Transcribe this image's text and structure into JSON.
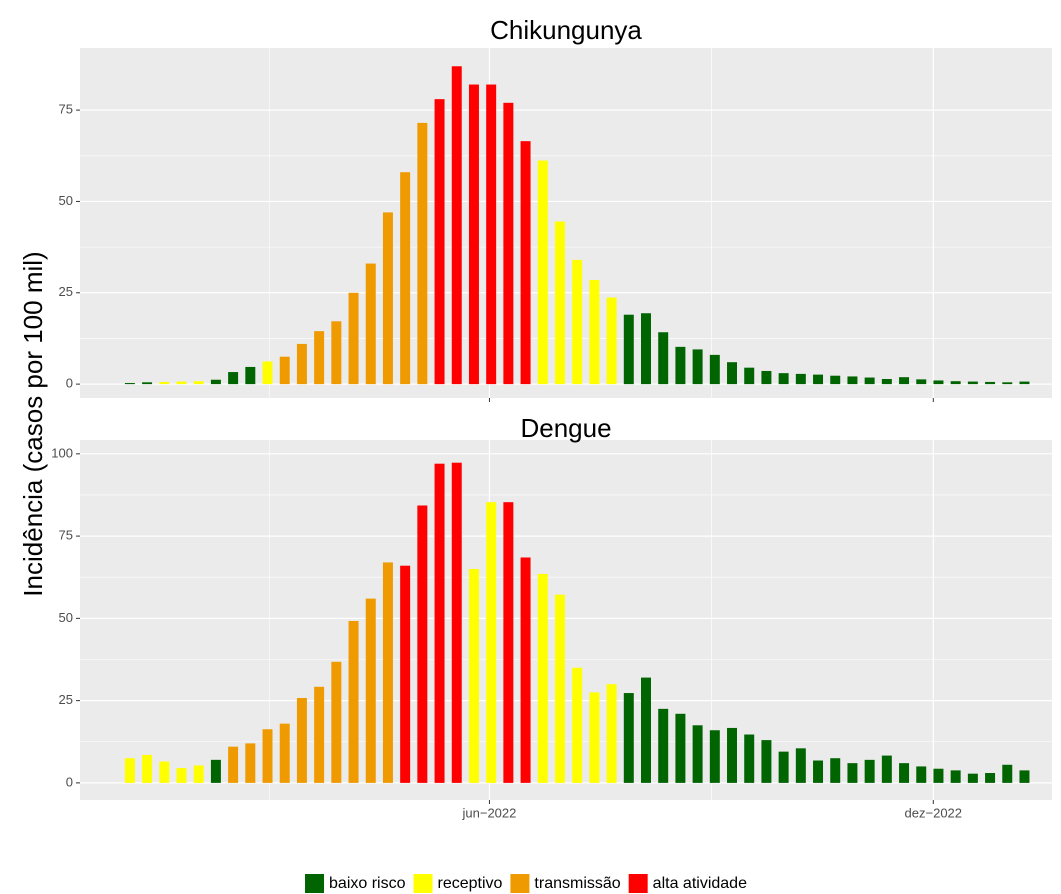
{
  "chart_data": {
    "type": "bar",
    "ylabel": "Incidência (casos por 100 mil)",
    "x": [
      1,
      2,
      3,
      4,
      5,
      6,
      7,
      8,
      9,
      10,
      11,
      12,
      13,
      14,
      15,
      16,
      17,
      18,
      19,
      20,
      21,
      22,
      23,
      24,
      25,
      26,
      27,
      28,
      29,
      30,
      31,
      32,
      33,
      34,
      35,
      36,
      37,
      38,
      39,
      40,
      41,
      42,
      43,
      44,
      45,
      46,
      47,
      48,
      49,
      50,
      51,
      52,
      53
    ],
    "xlim": [
      -1.9,
      54.6
    ],
    "xticks": [
      {
        "value": 21.9,
        "label": "jun−2022"
      },
      {
        "value": 47.7,
        "label": "dez−2022"
      }
    ],
    "xminor": [
      9.1,
      34.8
    ],
    "grid": true,
    "legend": "bottom",
    "series": [
      {
        "name": "baixo risco",
        "color": "#006400"
      },
      {
        "name": "receptivo",
        "color": "#FFFF00"
      },
      {
        "name": "transmissão",
        "color": "#EE9A00"
      },
      {
        "name": "alta atividade",
        "color": "#FF0000"
      }
    ],
    "facets": [
      {
        "title": "Chikungunya",
        "ylim": [
          -3.8,
          92
        ],
        "yticks": [
          0,
          25,
          50,
          75
        ],
        "series": [
          {
            "values": [
              0.3,
              0.5,
              null,
              null,
              null,
              1.2,
              3.3,
              4.7,
              null,
              null,
              null,
              null,
              null,
              null,
              null,
              null,
              null,
              null,
              null,
              null,
              null,
              null,
              null,
              null,
              null,
              null,
              null,
              null,
              null,
              19,
              19.4,
              14.2,
              10.2,
              9.5,
              8,
              6,
              4.5,
              3.6,
              3,
              2.8,
              2.6,
              2.3,
              2.1,
              1.8,
              1.4,
              1.9,
              1.3,
              1.0,
              0.8,
              0.7,
              0.6,
              0.5,
              0.7
            ]
          },
          {
            "values": [
              null,
              null,
              0.6,
              0.7,
              0.8,
              null,
              null,
              null,
              6.2,
              null,
              null,
              null,
              null,
              null,
              null,
              null,
              null,
              null,
              null,
              null,
              null,
              null,
              null,
              null,
              61.2,
              44.5,
              34,
              28.5,
              23.7,
              null,
              null,
              null,
              null,
              null,
              null,
              null,
              null,
              null,
              null,
              null,
              null,
              null,
              null,
              null,
              null,
              null,
              null,
              null,
              null,
              null,
              null,
              null,
              null
            ]
          },
          {
            "values": [
              null,
              null,
              null,
              null,
              null,
              null,
              null,
              null,
              null,
              7.5,
              11,
              14.5,
              17.2,
              25,
              33,
              47,
              58,
              71.5,
              null,
              null,
              null,
              null,
              null,
              null,
              null,
              null,
              null,
              null,
              null,
              null,
              null,
              null,
              null,
              null,
              null,
              null,
              null,
              null,
              null,
              null,
              null,
              null,
              null,
              null,
              null,
              null,
              null,
              null,
              null,
              null,
              null,
              null,
              null
            ]
          },
          {
            "values": [
              null,
              null,
              null,
              null,
              null,
              null,
              null,
              null,
              null,
              null,
              null,
              null,
              null,
              null,
              null,
              null,
              null,
              null,
              78,
              87,
              82,
              82,
              77,
              66.5,
              null,
              null,
              null,
              null,
              null,
              null,
              null,
              null,
              null,
              null,
              null,
              null,
              null,
              null,
              null,
              null,
              null,
              null,
              null,
              null,
              null,
              null,
              null,
              null,
              null,
              null,
              null,
              null,
              null
            ]
          }
        ]
      },
      {
        "title": "Dengue",
        "ylim": [
          -5.2,
          104.2
        ],
        "yticks": [
          0,
          25,
          50,
          75,
          100
        ],
        "series": [
          {
            "values": [
              null,
              null,
              null,
              null,
              null,
              7,
              null,
              null,
              null,
              null,
              null,
              null,
              null,
              null,
              null,
              null,
              null,
              null,
              null,
              null,
              null,
              null,
              null,
              null,
              null,
              null,
              null,
              null,
              null,
              27.3,
              32,
              22.5,
              21,
              17.5,
              16,
              16.7,
              14.7,
              13,
              9.5,
              10.5,
              6.8,
              7.5,
              6,
              7,
              8.3,
              6,
              5,
              4.3,
              3.8,
              2.8,
              3,
              5.5,
              3.8
            ]
          },
          {
            "values": [
              7.5,
              8.5,
              6.5,
              4.5,
              5.3,
              null,
              null,
              null,
              null,
              null,
              null,
              null,
              null,
              null,
              null,
              null,
              null,
              null,
              null,
              null,
              65,
              85.3,
              null,
              null,
              63.5,
              57.2,
              35,
              27.5,
              30,
              null,
              null,
              null,
              null,
              null,
              null,
              null,
              null,
              null,
              null,
              null,
              null,
              null,
              null,
              null,
              null,
              null,
              null,
              null,
              null,
              null,
              null,
              null,
              null
            ]
          },
          {
            "values": [
              null,
              null,
              null,
              null,
              null,
              null,
              11,
              12,
              16.3,
              18,
              25.8,
              29.2,
              36.8,
              49.2,
              56,
              67,
              null,
              null,
              null,
              null,
              null,
              null,
              null,
              null,
              null,
              null,
              null,
              null,
              null,
              null,
              null,
              null,
              null,
              null,
              null,
              null,
              null,
              null,
              null,
              null,
              null,
              null,
              null,
              null,
              null,
              null,
              null,
              null,
              null,
              null,
              null,
              null,
              null
            ]
          },
          {
            "values": [
              null,
              null,
              null,
              null,
              null,
              null,
              null,
              null,
              null,
              null,
              null,
              null,
              null,
              null,
              null,
              null,
              66,
              84.3,
              97,
              97.3,
              null,
              null,
              85.3,
              68.5,
              null,
              null,
              null,
              null,
              null,
              null,
              null,
              null,
              null,
              null,
              null,
              null,
              null,
              null,
              null,
              null,
              null,
              null,
              null,
              null,
              null,
              null,
              null,
              null,
              null,
              null,
              null,
              null,
              null
            ]
          }
        ]
      }
    ]
  }
}
